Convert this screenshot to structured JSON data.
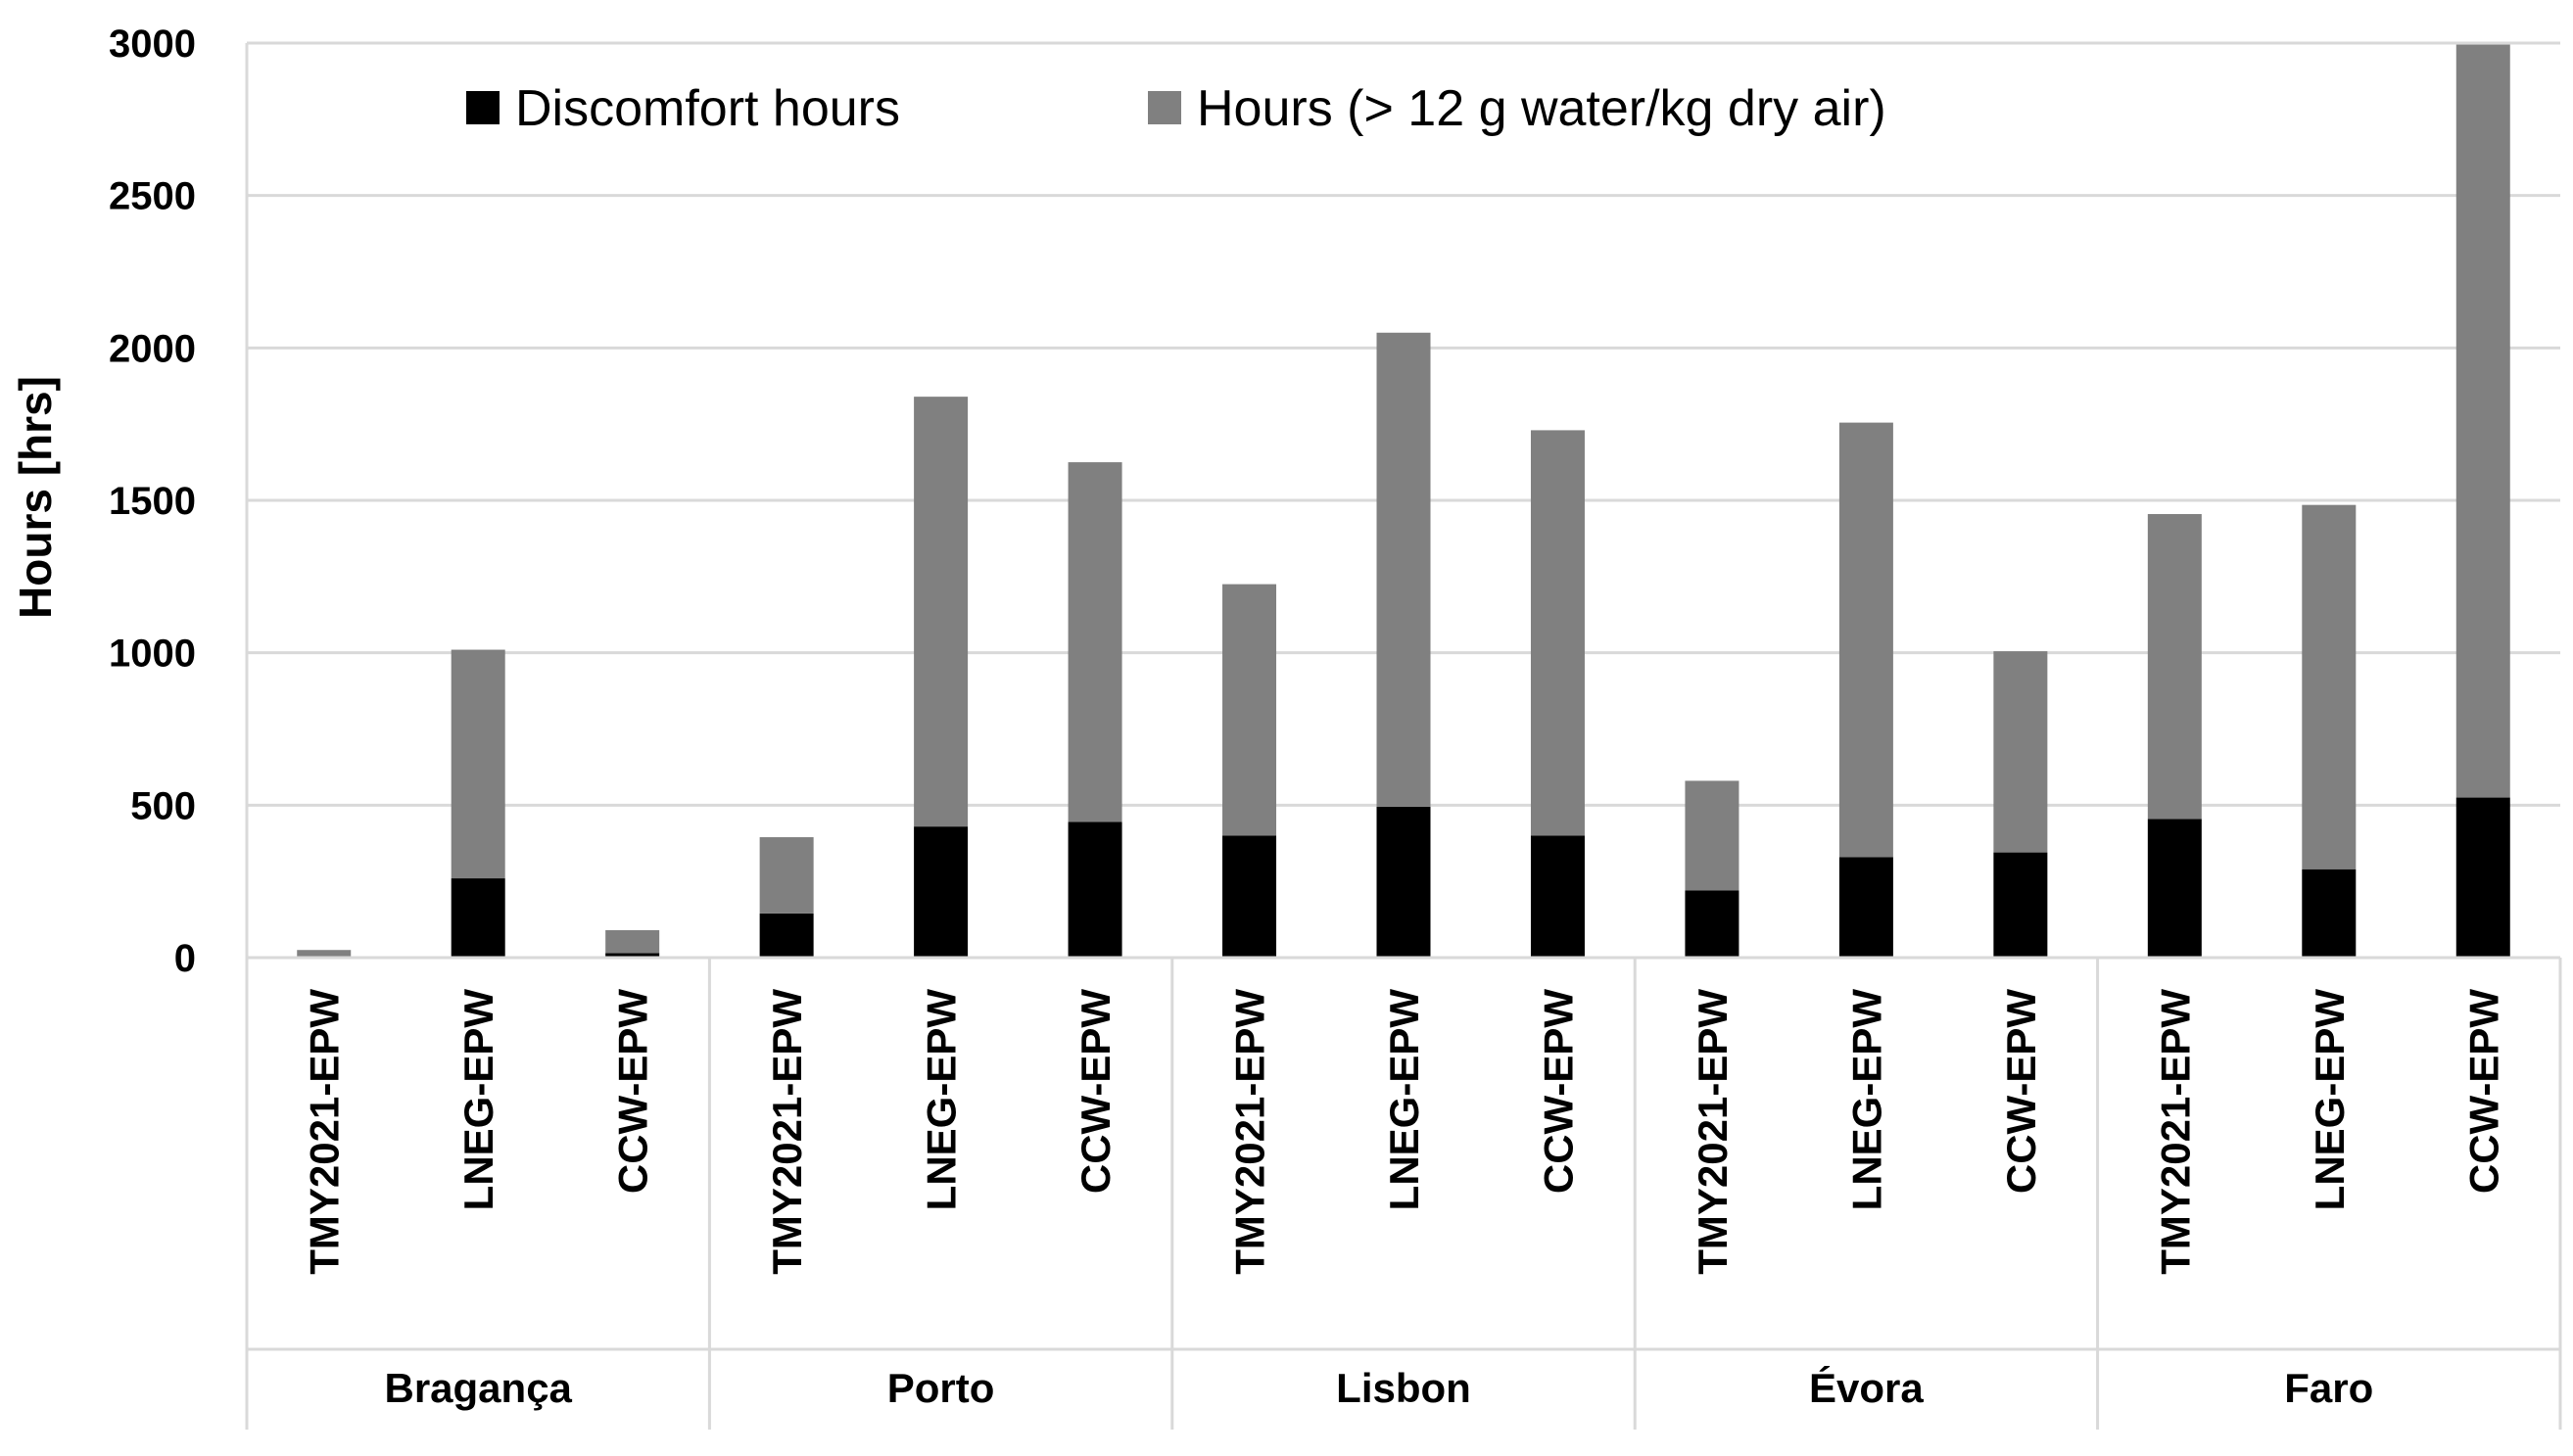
{
  "chart_data": {
    "type": "bar",
    "stacked": true,
    "ylabel": "Hours [hrs]",
    "xlabel": "",
    "ylim": [
      0,
      3000
    ],
    "yticks": [
      0,
      500,
      1000,
      1500,
      2000,
      2500,
      3000
    ],
    "grid": true,
    "legend_position": "top",
    "groups": [
      {
        "label": "Bragança",
        "categories": [
          "TMY2021-EPW",
          "LNEG-EPW",
          "CCW-EPW"
        ]
      },
      {
        "label": "Porto",
        "categories": [
          "TMY2021-EPW",
          "LNEG-EPW",
          "CCW-EPW"
        ]
      },
      {
        "label": "Lisbon",
        "categories": [
          "TMY2021-EPW",
          "LNEG-EPW",
          "CCW-EPW"
        ]
      },
      {
        "label": "Évora",
        "categories": [
          "TMY2021-EPW",
          "LNEG-EPW",
          "CCW-EPW"
        ]
      },
      {
        "label": "Faro",
        "categories": [
          "TMY2021-EPW",
          "LNEG-EPW",
          "CCW-EPW"
        ]
      }
    ],
    "series": [
      {
        "name": "Discomfort hours",
        "color": "#000000",
        "values": [
          0,
          260,
          15,
          145,
          430,
          445,
          400,
          495,
          400,
          220,
          330,
          345,
          455,
          290,
          525
        ]
      },
      {
        "name": "Hours (> 12 g water/kg dry air)",
        "color": "#808080",
        "values": [
          25,
          750,
          75,
          250,
          1410,
          1180,
          825,
          1555,
          1330,
          360,
          1425,
          660,
          1000,
          1195,
          2470
        ]
      }
    ]
  }
}
